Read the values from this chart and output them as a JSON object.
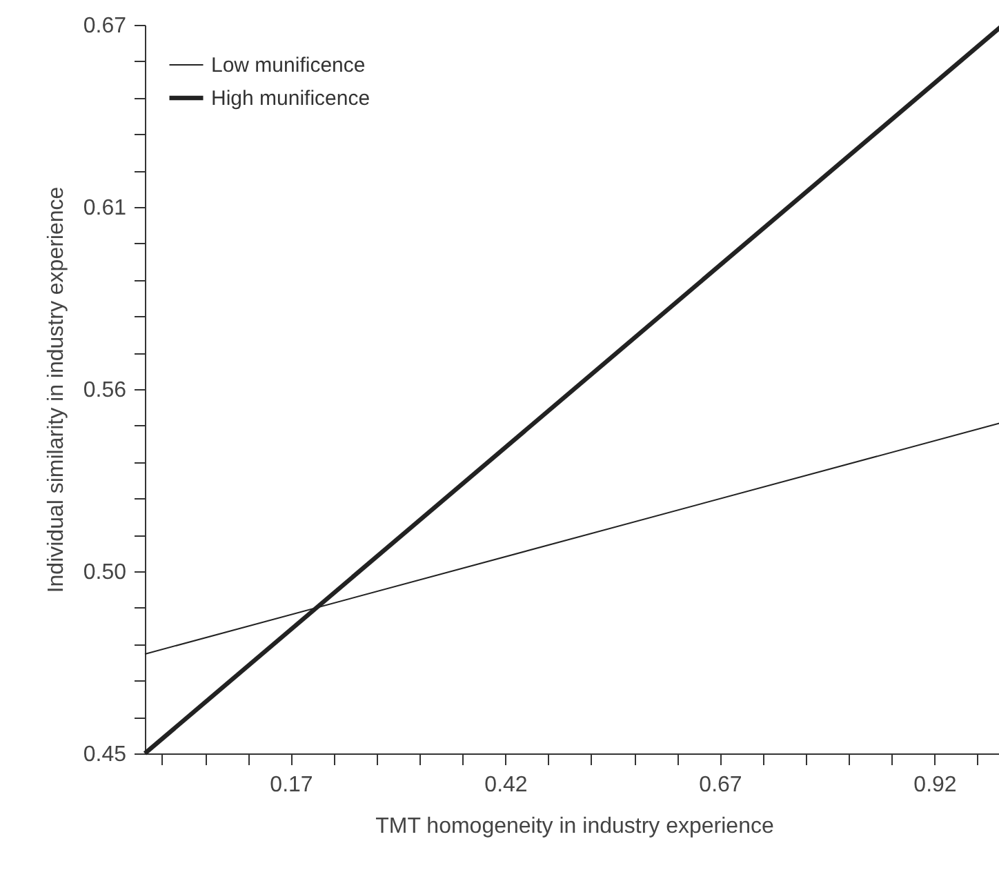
{
  "chart_data": {
    "type": "line",
    "xlabel": "TMT homogeneity in industry experience",
    "ylabel": "Individual similarity in industry experience",
    "x": [
      0,
      1
    ],
    "series": [
      {
        "name": "Low munificence",
        "color": "#222222",
        "values": [
          0.48,
          0.55
        ]
      },
      {
        "name": "High munificence",
        "color": "#222222",
        "values": [
          0.45,
          0.67
        ]
      }
    ],
    "xlim": [
      0,
      1
    ],
    "xticks": [
      {
        "value": 0.02,
        "label": null
      },
      {
        "value": 0.07,
        "label": null
      },
      {
        "value": 0.12,
        "label": null
      },
      0.17,
      {
        "value": 0.22,
        "label": null
      },
      {
        "value": 0.27,
        "label": null
      },
      {
        "value": 0.32,
        "label": null
      },
      {
        "value": 0.37,
        "label": null
      },
      0.42,
      {
        "value": 0.47,
        "label": null
      },
      {
        "value": 0.52,
        "label": null
      },
      {
        "value": 0.57,
        "label": null
      },
      {
        "value": 0.62,
        "label": null
      },
      0.67,
      {
        "value": 0.72,
        "label": null
      },
      {
        "value": 0.77,
        "label": null
      },
      {
        "value": 0.82,
        "label": null
      },
      {
        "value": 0.87,
        "label": null
      },
      0.92,
      {
        "value": 0.97,
        "label": null
      }
    ],
    "ylim": [
      0.45,
      0.67
    ],
    "yticks": [
      {
        "value": 0.45,
        "label": "0.45"
      },
      {
        "value": 0.461,
        "label": null
      },
      {
        "value": 0.472,
        "label": null
      },
      {
        "value": 0.483,
        "label": null
      },
      {
        "value": 0.494,
        "label": null
      },
      {
        "value": 0.505,
        "label": "0.50"
      },
      {
        "value": 0.516,
        "label": null
      },
      {
        "value": 0.527,
        "label": null
      },
      {
        "value": 0.538,
        "label": null
      },
      {
        "value": 0.549,
        "label": null
      },
      {
        "value": 0.56,
        "label": "0.56"
      },
      {
        "value": 0.571,
        "label": null
      },
      {
        "value": 0.582,
        "label": null
      },
      {
        "value": 0.593,
        "label": null
      },
      {
        "value": 0.604,
        "label": null
      },
      {
        "value": 0.615,
        "label": "0.61"
      },
      {
        "value": 0.626,
        "label": null
      },
      {
        "value": 0.637,
        "label": null
      },
      {
        "value": 0.648,
        "label": null
      },
      {
        "value": 0.659,
        "label": null
      },
      {
        "value": 0.67,
        "label": "0.67"
      }
    ],
    "legend": "top left",
    "grid": false,
    "marker": "none",
    "line_style": "solid"
  }
}
